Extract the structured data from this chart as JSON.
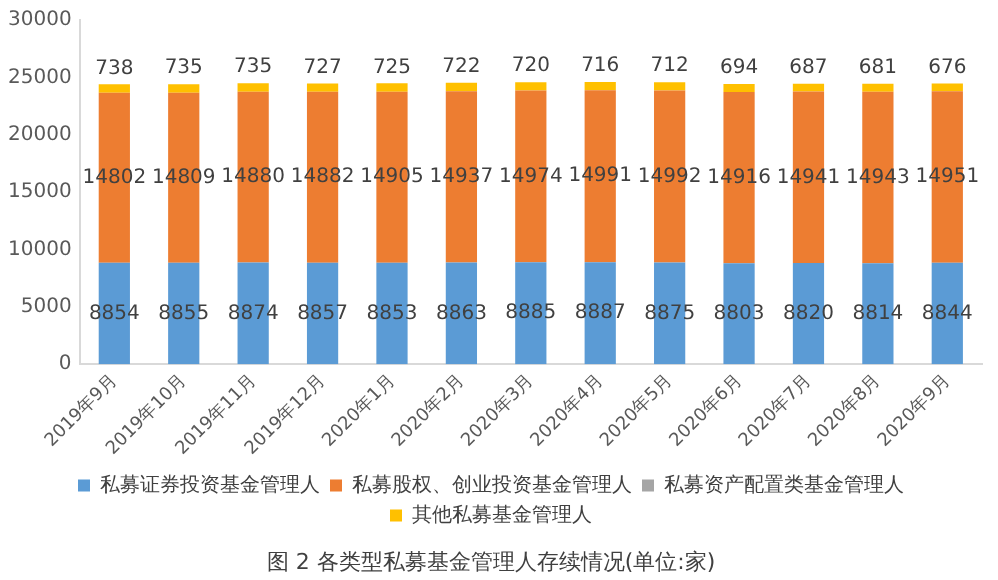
{
  "chart_data": {
    "type": "bar",
    "stacked": true,
    "title": "图 2 各类型私募基金管理人存续情况(单位:家)",
    "categories": [
      "2019年9月",
      "2019年10月",
      "2019年11月",
      "2019年12月",
      "2020年1月",
      "2020年2月",
      "2020年3月",
      "2020年4月",
      "2020年5月",
      "2020年6月",
      "2020年7月",
      "2020年8月",
      "2020年9月"
    ],
    "series": [
      {
        "name": "私募证券投资基金管理人",
        "color": "#5b9bd5",
        "values": [
          8854,
          8855,
          8874,
          8857,
          8853,
          8863,
          8885,
          8887,
          8875,
          8803,
          8820,
          8814,
          8844
        ]
      },
      {
        "name": "私募股权、创业投资基金管理人",
        "color": "#ed7d31",
        "values": [
          14802,
          14809,
          14880,
          14882,
          14905,
          14937,
          14974,
          14991,
          14992,
          14916,
          14941,
          14943,
          14951
        ]
      },
      {
        "name": "私募资产配置类基金管理人",
        "color": "#a5a5a5",
        "values": [
          null,
          null,
          null,
          null,
          null,
          null,
          null,
          null,
          null,
          null,
          null,
          null,
          null
        ]
      },
      {
        "name": "其他私募基金管理人",
        "color": "#ffc000",
        "values": [
          738,
          735,
          735,
          727,
          725,
          722,
          720,
          716,
          712,
          694,
          687,
          681,
          676
        ]
      }
    ],
    "ylim": [
      0,
      30000
    ],
    "yticks": [
      0,
      5000,
      10000,
      15000,
      20000,
      25000,
      30000
    ],
    "grid": false,
    "legend": "bottom",
    "data_labels": true
  }
}
